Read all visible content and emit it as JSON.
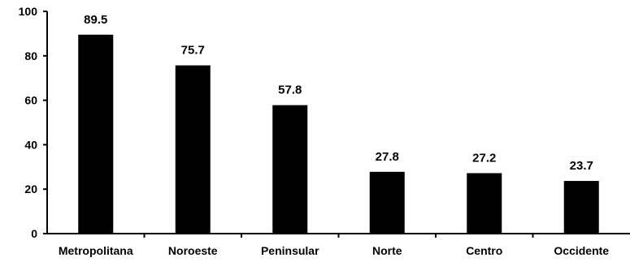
{
  "chart_data": {
    "type": "bar",
    "categories": [
      "Metropolitana",
      "Noroeste",
      "Peninsular",
      "Norte",
      "Centro",
      "Occidente"
    ],
    "values": [
      89.5,
      75.7,
      57.8,
      27.8,
      27.2,
      23.7
    ],
    "data_labels": [
      "89.5",
      "75.7",
      "57.8",
      "27.8",
      "27.2",
      "23.7"
    ],
    "title": "",
    "xlabel": "",
    "ylabel": "",
    "ylim": [
      0,
      100
    ],
    "yticks": [
      "0",
      "20",
      "40",
      "60",
      "80",
      "100"
    ],
    "grid": false,
    "legend": "none",
    "bar_color": "#000000",
    "axis_color": "#000000"
  }
}
